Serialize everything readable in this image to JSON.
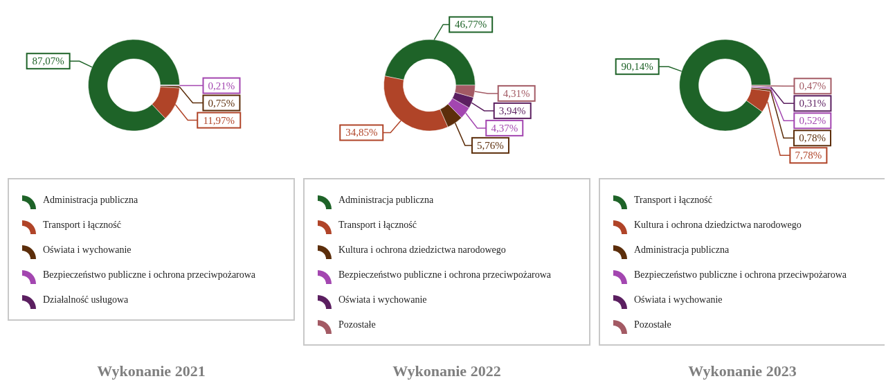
{
  "chart_data": [
    {
      "type": "donut",
      "title": "Wykonanie 2021",
      "legend": "bottom",
      "categories": [
        "Administracja publiczna",
        "Transport i łączność",
        "Oświata i wychowanie",
        "Bezpieczeństwo publiczne i ochrona przeciwpożarowa",
        "Działalność usługowa"
      ],
      "values": [
        87.07,
        11.97,
        0.75,
        0.21,
        0
      ],
      "value_labels": [
        "87,07%",
        "11,97%",
        "0,75%",
        "0,21%",
        null
      ],
      "colors": [
        "#1e6328",
        "#b04428",
        "#5c2e0b",
        "#a346b0",
        "#5b1f60"
      ]
    },
    {
      "type": "donut",
      "title": "Wykonanie 2022",
      "legend": "bottom",
      "categories": [
        "Administracja publiczna",
        "Transport i łączność",
        "Kultura i ochrona dziedzictwa narodowego",
        "Bezpieczeństwo publiczne i ochrona przeciwpożarowa",
        "Oświata i wychowanie",
        "Pozostałe"
      ],
      "values": [
        46.77,
        34.85,
        5.76,
        4.37,
        3.94,
        4.31
      ],
      "value_labels": [
        "46,77%",
        "34,85%",
        "5,76%",
        "4,37%",
        "3,94%",
        "4,31%"
      ],
      "colors": [
        "#1e6328",
        "#b04428",
        "#5c2e0b",
        "#a346b0",
        "#5b1f60",
        "#a35a64"
      ]
    },
    {
      "type": "donut",
      "title": "Wykonanie 2023",
      "legend": "bottom",
      "categories": [
        "Transport i łączność",
        "Kultura i ochrona dziedzictwa narodowego",
        "Administracja publiczna",
        "Bezpieczeństwo publiczne i ochrona przeciwpożarowa",
        "Oświata i wychowanie",
        "Pozostałe"
      ],
      "values": [
        90.14,
        7.78,
        0.78,
        0.52,
        0.31,
        0.47
      ],
      "value_labels": [
        "90,14%",
        "7,78%",
        "0,78%",
        "0,52%",
        "0,31%",
        "0,47%"
      ],
      "colors": [
        "#1e6328",
        "#b04428",
        "#5c2e0b",
        "#a346b0",
        "#5b1f60",
        "#a35a64"
      ]
    }
  ]
}
